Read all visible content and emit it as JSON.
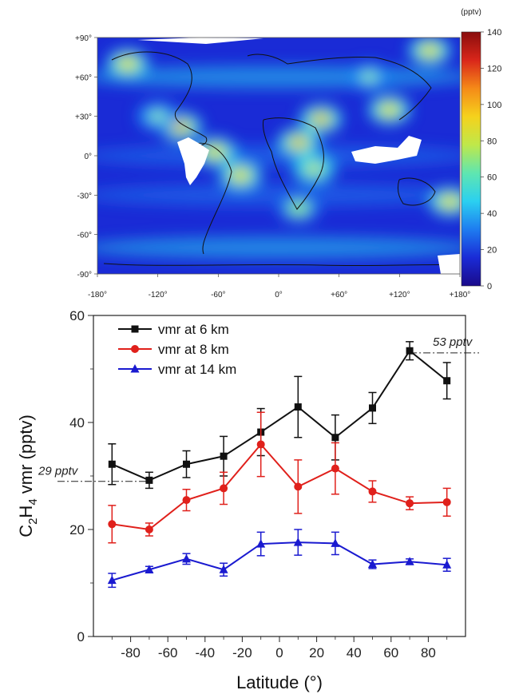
{
  "colors": {
    "ocean_low": "#1a2bd6",
    "black_series": "#111111",
    "red_series": "#e0201b",
    "blue_series": "#1a1ad0"
  },
  "chart_data": [
    {
      "type": "heatmap",
      "title": "",
      "x_ticks": [
        "-180°",
        "-120°",
        "-60°",
        "0°",
        "+60°",
        "+120°",
        "+180°"
      ],
      "y_ticks": [
        "+90°",
        "+60°",
        "+30°",
        "0°",
        "-30°",
        "-60°",
        "-90°"
      ],
      "xlim": [
        -180,
        180
      ],
      "ylim": [
        -90,
        90
      ],
      "colorbar": {
        "unit": "(pptv)",
        "ticks": [
          "0",
          "20",
          "40",
          "60",
          "80",
          "100",
          "120",
          "140"
        ],
        "range": [
          0,
          140
        ],
        "colors": [
          "#1a0a8a",
          "#1a2bd6",
          "#1e7cf0",
          "#2bd0f0",
          "#5fe6b0",
          "#bfe84a",
          "#f5d21c",
          "#f58a18",
          "#d9261a",
          "#8a0d0d"
        ]
      },
      "hotspots": [
        {
          "lon": -97,
          "lat": 22,
          "value": 110
        },
        {
          "lon": -63,
          "lat": 3,
          "value": 100
        },
        {
          "lon": -38,
          "lat": -15,
          "value": 95
        },
        {
          "lon": 20,
          "lat": 10,
          "value": 105
        },
        {
          "lon": 42,
          "lat": 28,
          "value": 110
        },
        {
          "lon": 35,
          "lat": -10,
          "value": 90
        },
        {
          "lon": 110,
          "lat": 35,
          "value": 100
        },
        {
          "lon": -150,
          "lat": 70,
          "value": 95
        },
        {
          "lon": 150,
          "lat": 80,
          "value": 100
        },
        {
          "lon": 170,
          "lat": -35,
          "value": 100
        },
        {
          "lon": 20,
          "lat": -40,
          "value": 80
        },
        {
          "lon": -120,
          "lat": 30,
          "value": 70
        },
        {
          "lon": 90,
          "lat": 60,
          "value": 70
        }
      ]
    },
    {
      "type": "line",
      "xlabel": "Latitude (°)",
      "ylabel": "C2H4 vmr (pptv)",
      "xlim": [
        -100,
        100
      ],
      "ylim": [
        0,
        60
      ],
      "x_ticks": [
        -80,
        -60,
        -40,
        -20,
        0,
        20,
        40,
        60,
        80
      ],
      "y_ticks": [
        0,
        20,
        40,
        60
      ],
      "x": [
        -90,
        -70,
        -50,
        -30,
        -10,
        10,
        30,
        50,
        70,
        90
      ],
      "legend_position": "top-left",
      "series": [
        {
          "name": "vmr at 6 km",
          "marker": "square",
          "values": [
            32.2,
            29.2,
            32.2,
            33.7,
            38.2,
            42.9,
            37.2,
            42.7,
            53.4,
            47.8
          ],
          "errors": [
            3.8,
            1.5,
            2.5,
            3.7,
            4.4,
            5.7,
            4.2,
            2.9,
            1.7,
            3.4
          ]
        },
        {
          "name": "vmr at 8 km",
          "marker": "circle",
          "values": [
            21.0,
            20.0,
            25.5,
            27.7,
            35.9,
            28.0,
            31.4,
            27.1,
            24.9,
            25.1
          ],
          "errors": [
            3.5,
            1.2,
            2.0,
            3.0,
            6.0,
            5.0,
            4.8,
            2.0,
            1.2,
            2.6
          ]
        },
        {
          "name": "vmr at 14 km",
          "marker": "triangle",
          "values": [
            10.5,
            12.5,
            14.5,
            12.5,
            17.3,
            17.6,
            17.4,
            13.5,
            14.0,
            13.4
          ],
          "errors": [
            1.3,
            0.6,
            1.0,
            1.2,
            2.2,
            2.4,
            2.1,
            0.8,
            0.5,
            1.2
          ]
        }
      ],
      "annotations": [
        {
          "text": "53 pptv",
          "y": 53
        },
        {
          "text": "29 pptv",
          "y": 29
        }
      ]
    }
  ]
}
